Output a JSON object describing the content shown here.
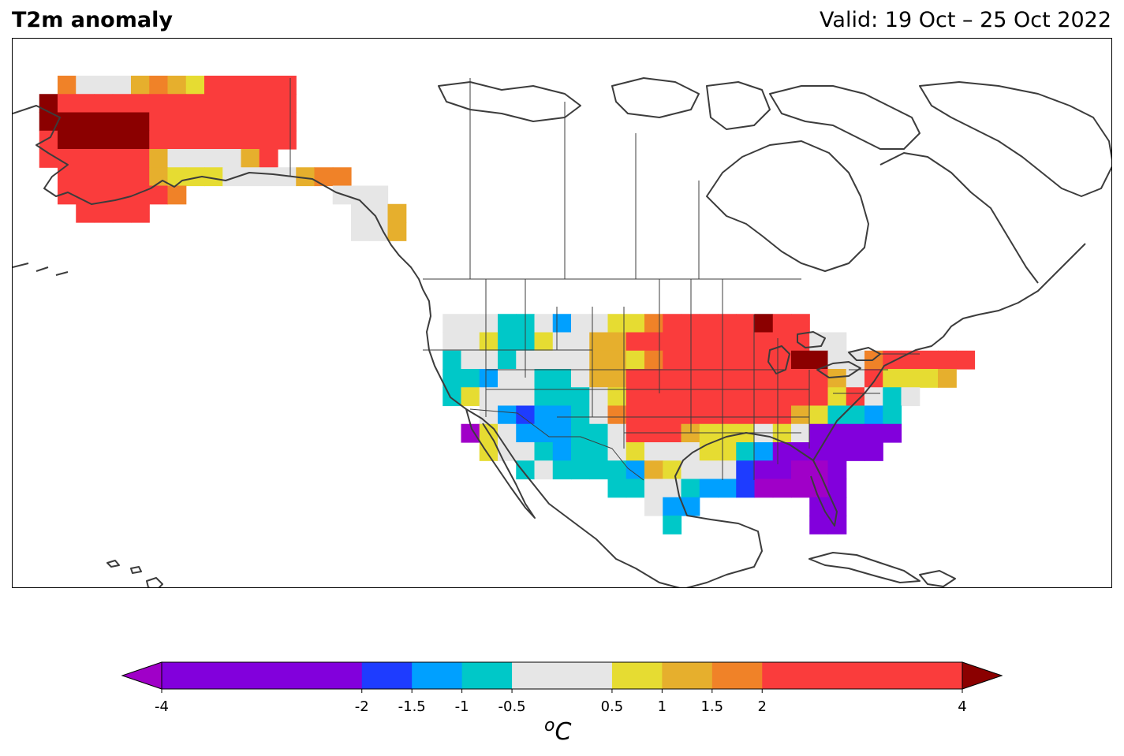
{
  "header": {
    "title": "T2m anomaly",
    "valid": "Valid: 19 Oct – 25 Oct 2022"
  },
  "colorbar": {
    "unit_sup": "o",
    "unit_main": "C",
    "levels": [
      -4,
      -2,
      -1.5,
      -1,
      -0.5,
      0.5,
      1,
      1.5,
      2,
      4
    ],
    "tick_labels": [
      "-4",
      "-2",
      "-1.5",
      "-1",
      "-0.5",
      "0.5",
      "1",
      "1.5",
      "2",
      "4"
    ],
    "colors": [
      "#8200dc",
      "#1e3cff",
      "#00a0ff",
      "#00c8c8",
      "#e6e6e6",
      "#e6dc32",
      "#e6af2d",
      "#f08228",
      "#fa3c3c"
    ],
    "under_color": "#a000c8",
    "over_color": "#8b0000",
    "spacing": "proportional"
  },
  "map": {
    "projection": "Plate Carree",
    "region": "North America",
    "extent_lon": [
      -180,
      -50
    ],
    "extent_lat": [
      10,
      75
    ],
    "grid_resolution_deg": 2,
    "coastline_color": "#3c3c3c",
    "border_color": "#3c3c3c"
  }
}
